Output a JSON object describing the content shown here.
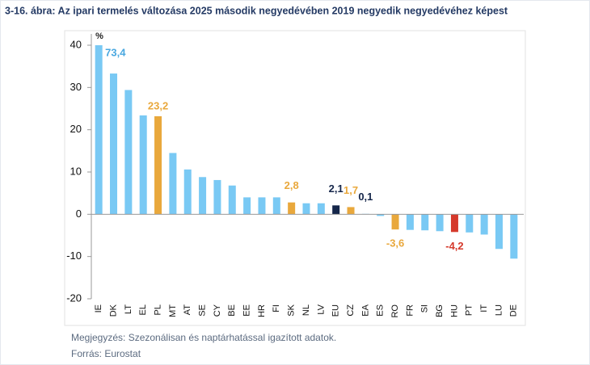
{
  "chart_data": {
    "type": "bar",
    "title": "3-16. ábra: Az ipari termelés változása 2025 második negyedévében 2019 negyedik negyedévéhez képest",
    "y_unit": "%",
    "categories": [
      "IE",
      "DK",
      "LT",
      "EL",
      "PL",
      "MT",
      "AT",
      "SE",
      "CY",
      "BE",
      "EE",
      "HR",
      "FI",
      "SK",
      "NL",
      "LV",
      "EU",
      "CZ",
      "EA",
      "ES",
      "RO",
      "FR",
      "SI",
      "BG",
      "HU",
      "PT",
      "IT",
      "LU",
      "DE"
    ],
    "values": [
      73.4,
      33.3,
      29.4,
      23.4,
      23.2,
      14.5,
      10.6,
      8.8,
      8.1,
      6.8,
      4.0,
      4.0,
      4.0,
      2.8,
      2.6,
      2.6,
      2.1,
      1.7,
      0.1,
      -0.4,
      -3.6,
      -3.7,
      -3.8,
      -4.0,
      -4.2,
      -4.3,
      -4.8,
      -8.2,
      -10.5
    ],
    "value_labels": [
      "73,4",
      null,
      null,
      null,
      "23,2",
      null,
      null,
      null,
      null,
      null,
      null,
      null,
      null,
      "2,8",
      null,
      null,
      "2,1",
      "1,7",
      "0,1",
      null,
      "-3,6",
      null,
      null,
      null,
      "-4,2",
      null,
      null,
      null,
      null
    ],
    "colors": [
      "#79c9f4",
      "#79c9f4",
      "#79c9f4",
      "#79c9f4",
      "#e9a83c",
      "#79c9f4",
      "#79c9f4",
      "#79c9f4",
      "#79c9f4",
      "#79c9f4",
      "#79c9f4",
      "#79c9f4",
      "#79c9f4",
      "#e9a83c",
      "#79c9f4",
      "#79c9f4",
      "#15264a",
      "#e9a83c",
      "#79c9f4",
      "#79c9f4",
      "#e9a83c",
      "#79c9f4",
      "#79c9f4",
      "#79c9f4",
      "#d5392b",
      "#79c9f4",
      "#79c9f4",
      "#79c9f4",
      "#79c9f4"
    ],
    "value_label_colors": [
      "#4aa8e0",
      null,
      null,
      null,
      "#e9a83c",
      null,
      null,
      null,
      null,
      null,
      null,
      null,
      null,
      "#e9a83c",
      null,
      null,
      "#15264a",
      "#e9a83c",
      "#15264a",
      null,
      "#e9a83c",
      null,
      null,
      null,
      "#d5392b",
      null,
      null,
      null,
      null
    ],
    "ylim": [
      -20,
      40
    ],
    "yticks": [
      -20,
      -10,
      0,
      10,
      20,
      30,
      40
    ],
    "notes": [
      "Megjegyzés: Szezonálisan és naptárhatással igazított adatok.",
      "Forrás: Eurostat"
    ]
  }
}
